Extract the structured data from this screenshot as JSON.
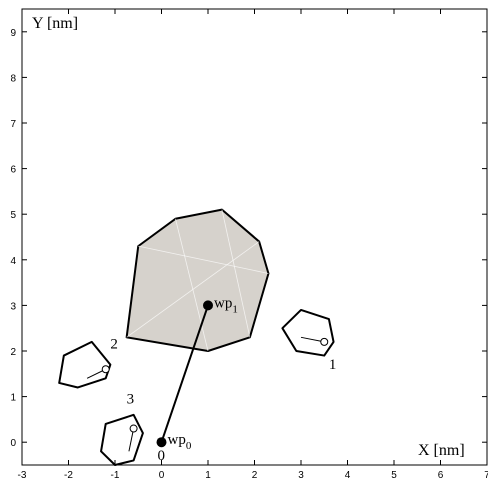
{
  "chart_data": {
    "type": "scatter",
    "xlabel": "X [nm]",
    "ylabel": "Y [nm]",
    "xlim": [
      -3,
      7
    ],
    "ylim": [
      -0.5,
      9.5
    ],
    "xticks": [
      -3,
      -2,
      -1,
      0,
      1,
      2,
      3,
      4,
      5,
      6,
      7
    ],
    "yticks": [
      0,
      1,
      2,
      3,
      4,
      5,
      6,
      7,
      8,
      9
    ],
    "grid": false,
    "waypoints": [
      {
        "name": "wp",
        "sub": "0",
        "x": 0.0,
        "y": 0.0
      },
      {
        "name": "wp",
        "sub": "1",
        "x": 1.0,
        "y": 3.0
      }
    ],
    "obstacles": [
      {
        "label": "",
        "filled": true,
        "vertices": [
          [
            -0.75,
            2.3
          ],
          [
            1.0,
            2.0
          ],
          [
            1.9,
            2.3
          ],
          [
            2.3,
            3.7
          ],
          [
            2.1,
            4.4
          ],
          [
            1.3,
            5.1
          ],
          [
            0.3,
            4.9
          ],
          [
            -0.5,
            4.3
          ]
        ],
        "inner_edges": [
          [
            [
              1.0,
              2.0
            ],
            [
              0.3,
              4.9
            ]
          ],
          [
            [
              -0.5,
              4.3
            ],
            [
              2.3,
              3.7
            ]
          ],
          [
            [
              1.3,
              5.1
            ],
            [
              1.9,
              2.3
            ]
          ],
          [
            [
              -0.75,
              2.3
            ],
            [
              2.1,
              4.4
            ]
          ]
        ]
      },
      {
        "label": "1",
        "filled": false,
        "vertices": [
          [
            2.6,
            2.5
          ],
          [
            3.0,
            2.9
          ],
          [
            3.6,
            2.7
          ],
          [
            3.7,
            2.2
          ],
          [
            3.5,
            1.9
          ],
          [
            2.9,
            2.0
          ]
        ],
        "center": [
          3.5,
          2.2
        ],
        "heading_from": [
          3.0,
          2.3
        ]
      },
      {
        "label": "2",
        "filled": false,
        "vertices": [
          [
            -2.1,
            1.9
          ],
          [
            -1.5,
            2.2
          ],
          [
            -1.1,
            1.7
          ],
          [
            -1.2,
            1.4
          ],
          [
            -1.8,
            1.2
          ],
          [
            -2.2,
            1.3
          ]
        ],
        "center": [
          -1.2,
          1.6
        ],
        "heading_from": [
          -1.6,
          1.4
        ]
      },
      {
        "label": "3",
        "filled": false,
        "vertices": [
          [
            -1.2,
            0.4
          ],
          [
            -0.6,
            0.6
          ],
          [
            -0.4,
            0.2
          ],
          [
            -0.6,
            -0.4
          ],
          [
            -1.0,
            -0.5
          ],
          [
            -1.3,
            -0.2
          ]
        ],
        "center": [
          -0.6,
          0.3
        ],
        "heading_from": [
          -0.7,
          -0.2
        ]
      }
    ],
    "annotations": [
      "0"
    ]
  }
}
